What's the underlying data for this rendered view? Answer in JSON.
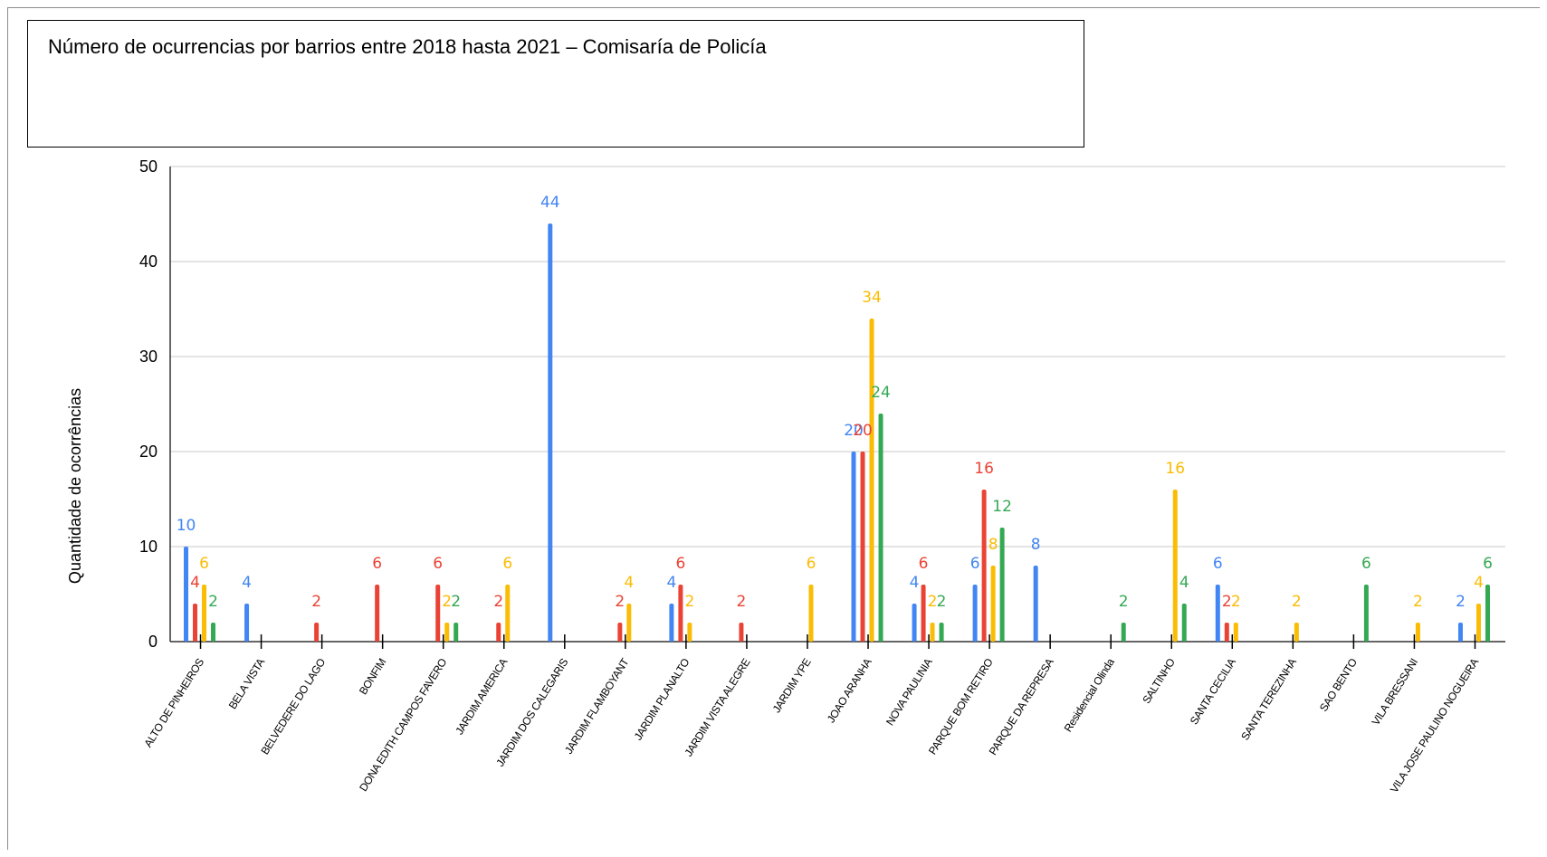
{
  "chart_data": {
    "type": "bar",
    "title": "Número de ocurrencias por barrios entre 2018 hasta 2021 – Comisaría de Policía",
    "xlabel": "",
    "ylabel": "Quantidade de ocorrências",
    "ylim": [
      0,
      50
    ],
    "yticks": [
      0,
      10,
      20,
      30,
      40,
      50
    ],
    "grid": true,
    "legend": "none",
    "categories": [
      "ALTO DE PINHEIROS",
      "BELA VISTA",
      "BELVEDERE DO LAGO",
      "BONFIM",
      "DONA EDITH CAMPOS FAVERO",
      "JARDIM AMERICA",
      "JARDIM DOS CALEGARIS",
      "JARDIM FLAMBOYANT",
      "JARDIM PLANALTO",
      "JARDIM VISTA ALEGRE",
      "JARDIM YPE",
      "JOAO ARANHA",
      "NOVA PAULINIA",
      "PARQUE BOM RETIRO",
      "PARQUE DA REPRESA",
      "Residencial Olinda",
      "SALTINHO",
      "SANTA CECILIA",
      "SANTA TEREZINHA",
      "SAO BENTO",
      "VILA BRESSANI",
      "VILA JOSE PAULINO NOGUEIRA"
    ],
    "series": [
      {
        "color": "#4285F4",
        "values": [
          10,
          4,
          null,
          null,
          null,
          null,
          44,
          null,
          4,
          null,
          null,
          20,
          4,
          6,
          8,
          null,
          null,
          6,
          null,
          null,
          null,
          2
        ]
      },
      {
        "color": "#EA4335",
        "values": [
          4,
          null,
          2,
          6,
          6,
          2,
          null,
          2,
          6,
          2,
          null,
          20,
          6,
          16,
          null,
          null,
          null,
          2,
          null,
          null,
          null,
          null
        ]
      },
      {
        "color": "#FBBC04",
        "values": [
          6,
          null,
          null,
          null,
          2,
          6,
          null,
          4,
          2,
          null,
          6,
          34,
          2,
          8,
          null,
          null,
          16,
          2,
          2,
          null,
          2,
          4
        ]
      },
      {
        "color": "#34A853",
        "values": [
          2,
          null,
          null,
          null,
          2,
          null,
          null,
          null,
          null,
          null,
          null,
          24,
          2,
          12,
          null,
          2,
          4,
          null,
          null,
          6,
          null,
          6
        ]
      }
    ]
  }
}
